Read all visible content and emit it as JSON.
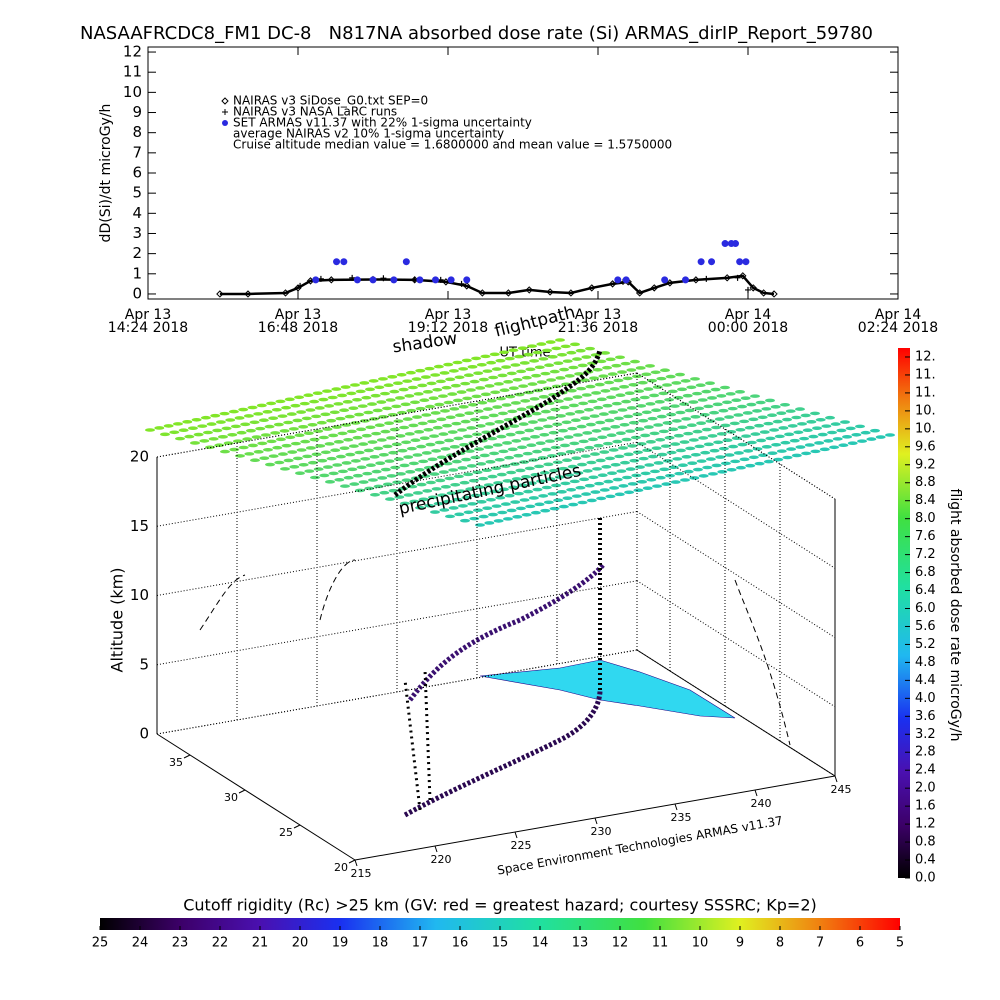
{
  "chart_data": [
    {
      "type": "line",
      "title": "NASAAFRCDC8_FM1 DC-8   N817NA absorbed dose rate (Si) ARMAS_dirIP_Report_59780",
      "ylabel": "dD(Si)/dt microGy/h",
      "xlabel": "UT time",
      "xlim": [
        "2018-04-13 14:24",
        "2018-04-14 02:24"
      ],
      "xticks": [
        {
          "value": "2018-04-13 14:24",
          "label": "Apr 13\n14:24 2018"
        },
        {
          "value": "2018-04-13 16:48",
          "label": "Apr 13\n16:48 2018"
        },
        {
          "value": "2018-04-13 19:12",
          "label": "Apr 13\n19:12 2018"
        },
        {
          "value": "2018-04-13 21:36",
          "label": "Apr 13\n21:36 2018"
        },
        {
          "value": "2018-04-14 00:00",
          "label": "Apr 14\n00:00 2018"
        },
        {
          "value": "2018-04-14 02:24",
          "label": "Apr 14\n02:24 2018"
        }
      ],
      "ylim": [
        -0.25,
        12.25
      ],
      "yticks": [
        0,
        1,
        2,
        3,
        4,
        5,
        6,
        7,
        8,
        9,
        10,
        11,
        12
      ],
      "legend_notes": [
        "average NAIRAS v2 10% 1-sigma uncertainty",
        "Cruise altitude median value = 1.6800000 and mean value = 1.5750000"
      ],
      "series": [
        {
          "name": "NAIRAS v3 SiDose_G0.txt SEP=0",
          "color": "#000000",
          "marker": "diamond",
          "x": [
            "2018-04-13 15:33",
            "2018-04-13 16:00",
            "2018-04-13 16:36",
            "2018-04-13 16:48",
            "2018-04-13 17:00",
            "2018-04-13 17:20",
            "2018-04-13 18:00",
            "2018-04-13 18:40",
            "2018-04-13 19:10",
            "2018-04-13 19:30",
            "2018-04-13 19:45",
            "2018-04-13 20:10",
            "2018-04-13 20:30",
            "2018-04-13 20:50",
            "2018-04-13 21:10",
            "2018-04-13 21:30",
            "2018-04-13 21:50",
            "2018-04-13 22:05",
            "2018-04-13 22:16",
            "2018-04-13 22:30",
            "2018-04-13 22:45",
            "2018-04-13 23:10",
            "2018-04-13 23:40",
            "2018-04-13 23:55",
            "2018-04-14 00:05",
            "2018-04-14 00:15",
            "2018-04-14 00:25"
          ],
          "values": [
            0,
            0,
            0.05,
            0.3,
            0.65,
            0.7,
            0.72,
            0.7,
            0.6,
            0.4,
            0.05,
            0.05,
            0.2,
            0.1,
            0.05,
            0.3,
            0.5,
            0.6,
            0.05,
            0.3,
            0.55,
            0.7,
            0.8,
            0.9,
            0.3,
            0.05,
            0
          ]
        },
        {
          "name": "NAIRAS v3 NASA LaRC runs",
          "color": "#000000",
          "marker": "plus",
          "x": [
            "2018-04-13 16:50",
            "2018-04-13 17:10",
            "2018-04-13 17:40",
            "2018-04-13 18:10",
            "2018-04-13 18:40",
            "2018-04-13 19:05",
            "2018-04-13 19:25",
            "2018-04-13 22:00",
            "2018-04-13 23:20",
            "2018-04-13 23:50",
            "2018-04-14 00:00"
          ],
          "values": [
            0.4,
            0.75,
            0.8,
            0.78,
            0.72,
            0.7,
            0.5,
            0.6,
            0.75,
            0.8,
            0.2
          ]
        },
        {
          "name": "SET ARMAS v11.37 with 22% 1-sigma uncertainty",
          "color": "#2a2ae0",
          "marker": "circle",
          "x": [
            "2018-04-13 17:05",
            "2018-04-13 17:25",
            "2018-04-13 17:32",
            "2018-04-13 17:45",
            "2018-04-13 18:00",
            "2018-04-13 18:20",
            "2018-04-13 18:32",
            "2018-04-13 18:45",
            "2018-04-13 19:00",
            "2018-04-13 19:15",
            "2018-04-13 19:30",
            "2018-04-13 21:55",
            "2018-04-13 22:03",
            "2018-04-13 22:40",
            "2018-04-13 23:00",
            "2018-04-13 23:15",
            "2018-04-13 23:25",
            "2018-04-13 23:38",
            "2018-04-13 23:44",
            "2018-04-13 23:48",
            "2018-04-13 23:52",
            "2018-04-13 23:58"
          ],
          "values": [
            0.7,
            1.6,
            1.6,
            0.7,
            0.7,
            0.7,
            1.6,
            0.7,
            0.7,
            0.7,
            0.7,
            0.7,
            0.7,
            0.7,
            0.7,
            1.6,
            1.6,
            2.5,
            2.5,
            2.5,
            1.6,
            1.6
          ]
        }
      ]
    },
    {
      "type": "surface3d",
      "zlabel": "Altitude (km)",
      "xlim": [
        215,
        245
      ],
      "ylim": [
        20,
        38
      ],
      "zlim": [
        0,
        20
      ],
      "xticks": [
        215,
        220,
        225,
        230,
        235,
        240,
        245
      ],
      "yticks": [
        20,
        25,
        30,
        35
      ],
      "zticks": [
        0,
        5,
        10,
        15,
        20
      ],
      "annotations": [
        "shadow",
        "flightpath",
        "precipitating particles"
      ],
      "credit": "Space Environment Technologies ARMAS v11.37"
    },
    {
      "type": "colorbar",
      "orientation": "vertical",
      "label": "flight absorbed dose rate microGy/h",
      "clim": [
        0,
        11.8
      ],
      "ticks": [
        {
          "value": 0,
          "label": "0.0"
        },
        {
          "value": 0.4,
          "label": "0.4"
        },
        {
          "value": 0.8,
          "label": "0.8"
        },
        {
          "value": 1.2,
          "label": "1.2"
        },
        {
          "value": 1.6,
          "label": "1.6"
        },
        {
          "value": 2,
          "label": "2.0"
        },
        {
          "value": 2.4,
          "label": "2.4"
        },
        {
          "value": 2.8,
          "label": "2.8"
        },
        {
          "value": 3.2,
          "label": "3.2"
        },
        {
          "value": 3.6,
          "label": "3.6"
        },
        {
          "value": 4,
          "label": "4.0"
        },
        {
          "value": 4.4,
          "label": "4.4"
        },
        {
          "value": 4.8,
          "label": "4.8"
        },
        {
          "value": 5.2,
          "label": "5.2"
        },
        {
          "value": 5.6,
          "label": "5.6"
        },
        {
          "value": 6,
          "label": "6.0"
        },
        {
          "value": 6.4,
          "label": "6.4"
        },
        {
          "value": 6.8,
          "label": "6.8"
        },
        {
          "value": 7.2,
          "label": "7.2"
        },
        {
          "value": 7.6,
          "label": "7.6"
        },
        {
          "value": 8,
          "label": "8.0"
        },
        {
          "value": 8.4,
          "label": "8.4"
        },
        {
          "value": 8.8,
          "label": "8.8"
        },
        {
          "value": 9.2,
          "label": "9.2"
        },
        {
          "value": 9.6,
          "label": "9.6"
        },
        {
          "value": 10,
          "label": "10."
        },
        {
          "value": 10.4,
          "label": "10."
        },
        {
          "value": 10.8,
          "label": "11."
        },
        {
          "value": 11.2,
          "label": "11."
        },
        {
          "value": 11.6,
          "label": "12."
        }
      ]
    },
    {
      "type": "colorbar",
      "orientation": "horizontal",
      "title": "Cutoff rigidity (Rc) >25 km (GV: red = greatest hazard; courtesy SSSRC; Kp=2)",
      "clim": [
        25,
        5
      ],
      "ticks": [
        25,
        24,
        23,
        22,
        21,
        20,
        19,
        18,
        17,
        16,
        15,
        14,
        13,
        12,
        11,
        10,
        9,
        8,
        7,
        6,
        5
      ]
    }
  ]
}
